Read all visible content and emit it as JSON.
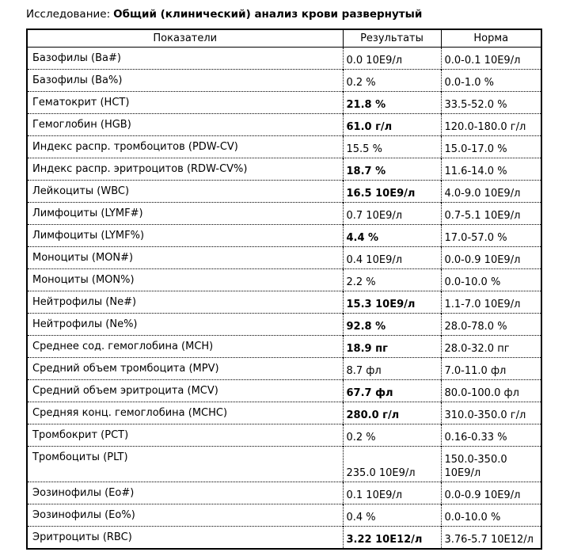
{
  "title": {
    "label": "Исследование:",
    "value": "Общий (клинический) анализ крови развернутый"
  },
  "table": {
    "columns": [
      "Показатели",
      "Результаты",
      "Норма"
    ],
    "rows": [
      {
        "parameter": "Базофилы (Ba#)",
        "result": "0.0 10E9/л",
        "norm": "0.0-0.1 10E9/л",
        "abnormal": false
      },
      {
        "parameter": "Базофилы (Ba%)",
        "result": "0.2 %",
        "norm": "0.0-1.0 %",
        "abnormal": false
      },
      {
        "parameter": "Гематокрит (HCT)",
        "result": "21.8 %",
        "norm": "33.5-52.0 %",
        "abnormal": true
      },
      {
        "parameter": "Гемоглобин (HGB)",
        "result": "61.0 г/л",
        "norm": "120.0-180.0 г/л",
        "abnormal": true
      },
      {
        "parameter": "Индекс распр. тромбоцитов (PDW-CV)",
        "result": "15.5 %",
        "norm": "15.0-17.0 %",
        "abnormal": false
      },
      {
        "parameter": "Индекс распр. эритроцитов (RDW-CV%)",
        "result": "18.7 %",
        "norm": "11.6-14.0 %",
        "abnormal": true
      },
      {
        "parameter": "Лейкоциты (WBC)",
        "result": "16.5 10E9/л",
        "norm": "4.0-9.0 10E9/л",
        "abnormal": true
      },
      {
        "parameter": "Лимфоциты (LYMF#)",
        "result": "0.7 10E9/л",
        "norm": "0.7-5.1 10E9/л",
        "abnormal": false
      },
      {
        "parameter": "Лимфоциты (LYMF%)",
        "result": "4.4 %",
        "norm": "17.0-57.0 %",
        "abnormal": true
      },
      {
        "parameter": "Моноциты (MON#)",
        "result": "0.4 10E9/л",
        "norm": "0.0-0.9 10E9/л",
        "abnormal": false
      },
      {
        "parameter": "Моноциты (MON%)",
        "result": "2.2 %",
        "norm": "0.0-10.0 %",
        "abnormal": false
      },
      {
        "parameter": "Нейтрофилы (Ne#)",
        "result": "15.3 10E9/л",
        "norm": "1.1-7.0 10E9/л",
        "abnormal": true
      },
      {
        "parameter": "Нейтрофилы (Ne%)",
        "result": "92.8 %",
        "norm": "28.0-78.0 %",
        "abnormal": true
      },
      {
        "parameter": "Среднее сод. гемоглобина (MCH)",
        "result": "18.9 пг",
        "norm": "28.0-32.0 пг",
        "abnormal": true
      },
      {
        "parameter": "Средний объем тромбоцита (MPV)",
        "result": "8.7 фл",
        "norm": "7.0-11.0 фл",
        "abnormal": false
      },
      {
        "parameter": "Средний объем эритроцита (MCV)",
        "result": "67.7 фл",
        "norm": "80.0-100.0 фл",
        "abnormal": true
      },
      {
        "parameter": "Средняя конц. гемоглобина (MCHC)",
        "result": "280.0 г/л",
        "norm": "310.0-350.0 г/л",
        "abnormal": true
      },
      {
        "parameter": "Тромбокрит (PCT)",
        "result": "0.2 %",
        "norm": "0.16-0.33 %",
        "abnormal": false
      },
      {
        "parameter": "Тромбоциты (PLT)",
        "result": "235.0 10E9/л",
        "norm": "150.0-350.0 10E9/л",
        "abnormal": false
      },
      {
        "parameter": "Эозинофилы (Eo#)",
        "result": "0.1 10E9/л",
        "norm": "0.0-0.9 10E9/л",
        "abnormal": false
      },
      {
        "parameter": "Эозинофилы (Eo%)",
        "result": "0.4 %",
        "norm": "0.0-10.0 %",
        "abnormal": false
      },
      {
        "parameter": "Эритроциты (RBC)",
        "result": "3.22 10E12/л",
        "norm": "3.76-5.7 10E12/л",
        "abnormal": true
      }
    ]
  }
}
